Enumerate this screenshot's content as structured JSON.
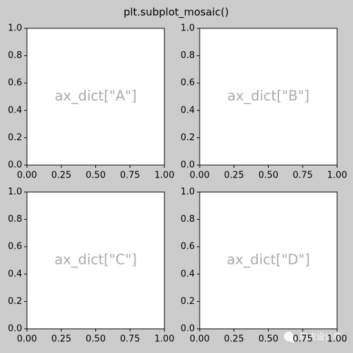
{
  "title": "plt.subplot_mosaic()",
  "watermark": "码农设计师",
  "chart_data": [
    {
      "type": "blank",
      "annotation": "ax_dict[\"A\"]",
      "xlim": [
        0,
        1
      ],
      "ylim": [
        0,
        1
      ],
      "xticks": [
        {
          "value": 0,
          "label": "0.00"
        },
        0.25,
        {
          "value": 0.5,
          "label": "0.50"
        },
        0.75,
        {
          "value": 1,
          "label": "1.00"
        }
      ],
      "yticks": [
        {
          "value": 0,
          "label": "0.0"
        },
        0.2,
        0.4,
        0.6,
        0.8,
        {
          "value": 1,
          "label": "1.0"
        }
      ]
    },
    {
      "type": "blank",
      "annotation": "ax_dict[\"B\"]",
      "xlim": [
        0,
        1
      ],
      "ylim": [
        0,
        1
      ],
      "xticks": [
        {
          "value": 0,
          "label": "0.00"
        },
        0.25,
        {
          "value": 0.5,
          "label": "0.50"
        },
        0.75,
        {
          "value": 1,
          "label": "1.00"
        }
      ],
      "yticks": [
        {
          "value": 0,
          "label": "0.0"
        },
        0.2,
        0.4,
        0.6,
        0.8,
        {
          "value": 1,
          "label": "1.0"
        }
      ]
    },
    {
      "type": "blank",
      "annotation": "ax_dict[\"C\"]",
      "xlim": [
        0,
        1
      ],
      "ylim": [
        0,
        1
      ],
      "xticks": [
        {
          "value": 0,
          "label": "0.00"
        },
        0.25,
        {
          "value": 0.5,
          "label": "0.50"
        },
        0.75,
        {
          "value": 1,
          "label": "1.00"
        }
      ],
      "yticks": [
        {
          "value": 0,
          "label": "0.0"
        },
        0.2,
        0.4,
        0.6,
        0.8,
        {
          "value": 1,
          "label": "1.0"
        }
      ]
    },
    {
      "type": "blank",
      "annotation": "ax_dict[\"D\"]",
      "xlim": [
        0,
        1
      ],
      "ylim": [
        0,
        1
      ],
      "xticks": [
        {
          "value": 0,
          "label": "0.00"
        },
        0.25,
        {
          "value": 0.5,
          "label": "0.50"
        },
        0.75,
        {
          "value": 1,
          "label": "1.00"
        }
      ],
      "yticks": [
        {
          "value": 0,
          "label": "0.0"
        },
        0.2,
        0.4,
        0.6,
        0.8,
        {
          "value": 1,
          "label": "1.0"
        }
      ]
    }
  ]
}
